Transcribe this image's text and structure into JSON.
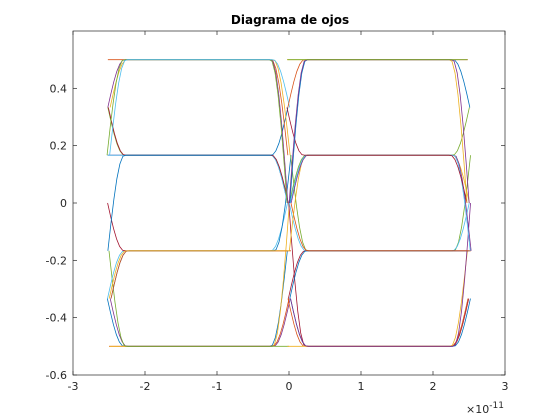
{
  "chart_data": {
    "type": "line",
    "title": "Diagrama de ojos",
    "xlabel": "",
    "ylabel": "",
    "x_unit_exponent": "×10",
    "x_exponent_power": "-11",
    "xlim": [
      -3,
      3
    ],
    "ylim": [
      -0.6,
      0.6
    ],
    "x_ticks": [
      -3,
      -2,
      -1,
      0,
      1,
      2,
      3
    ],
    "x_tick_labels": [
      "-3",
      "-2",
      "-1",
      "0",
      "1",
      "2",
      "3"
    ],
    "y_ticks": [
      -0.6,
      -0.4,
      -0.2,
      0,
      0.2,
      0.4
    ],
    "y_tick_labels": [
      "-0.6",
      "-0.4",
      "-0.2",
      "0",
      "0.2",
      "0.4"
    ],
    "grid": false,
    "levels": [
      -0.5,
      -0.1667,
      0.1667,
      0.5
    ],
    "symbol_period_x": [
      -2.5,
      0,
      2.5
    ],
    "colors": [
      "#0072BD",
      "#D95319",
      "#EDB120",
      "#7E2F8E",
      "#77AC30",
      "#4DBEEE",
      "#A2142F"
    ]
  }
}
